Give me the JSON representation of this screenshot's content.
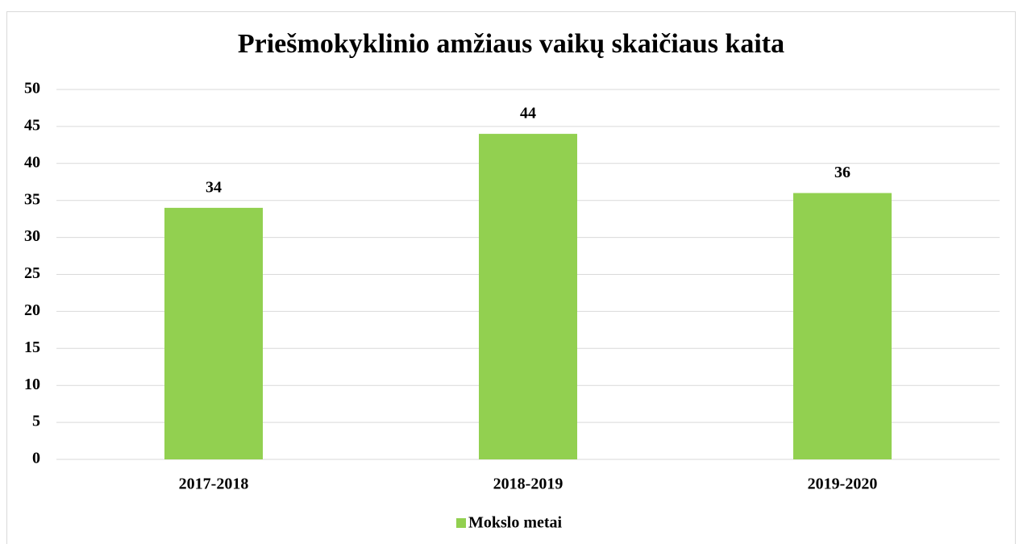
{
  "chart_data": {
    "type": "bar",
    "title": "Priešmokykliniо amžiaus vaikų skaičiaus kaita",
    "categories": [
      "2017-2018",
      "2018-2019",
      "2019-2020"
    ],
    "series": [
      {
        "name": "Mokslo metai",
        "color": "#92d050",
        "values": [
          34,
          44,
          36
        ]
      }
    ],
    "ylim": [
      0,
      50
    ],
    "yticks": [
      0,
      5,
      10,
      15,
      20,
      25,
      30,
      35,
      40,
      45,
      50
    ],
    "grid": true,
    "legend": "bottom"
  }
}
